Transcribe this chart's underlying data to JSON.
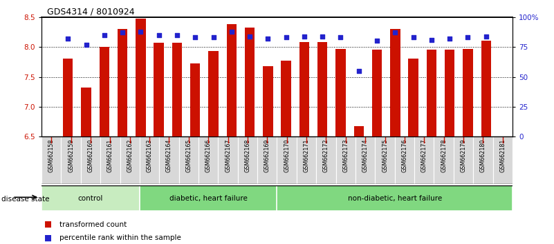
{
  "title": "GDS4314 / 8010924",
  "samples": [
    "GSM662158",
    "GSM662159",
    "GSM662160",
    "GSM662161",
    "GSM662162",
    "GSM662163",
    "GSM662164",
    "GSM662165",
    "GSM662166",
    "GSM662167",
    "GSM662168",
    "GSM662169",
    "GSM662170",
    "GSM662171",
    "GSM662172",
    "GSM662173",
    "GSM662174",
    "GSM662175",
    "GSM662176",
    "GSM662177",
    "GSM662178",
    "GSM662179",
    "GSM662180",
    "GSM662181"
  ],
  "bar_values": [
    7.8,
    7.32,
    8.0,
    8.3,
    8.48,
    8.07,
    8.07,
    7.73,
    7.93,
    8.38,
    8.32,
    7.68,
    7.77,
    8.08,
    8.08,
    7.97,
    6.68,
    7.95,
    8.3,
    7.8,
    7.95,
    7.95,
    7.97,
    8.11
  ],
  "percentile_values": [
    82,
    77,
    85,
    87,
    88,
    85,
    85,
    83,
    83,
    88,
    84,
    82,
    83,
    84,
    84,
    83,
    55,
    80,
    87,
    83,
    81,
    82,
    83,
    84
  ],
  "group_data": [
    {
      "label": "control",
      "start": 0,
      "end": 5,
      "color": "#c8ecc0"
    },
    {
      "label": "diabetic, heart failure",
      "start": 5,
      "end": 12,
      "color": "#80d880"
    },
    {
      "label": "non-diabetic, heart failure",
      "start": 12,
      "end": 24,
      "color": "#80d880"
    }
  ],
  "bar_color": "#cc1100",
  "dot_color": "#2222cc",
  "ylim_left": [
    6.5,
    8.5
  ],
  "ylim_right": [
    0,
    100
  ],
  "yticks_left": [
    6.5,
    7.0,
    7.5,
    8.0,
    8.5
  ],
  "yticks_right": [
    0,
    25,
    50,
    75,
    100
  ],
  "ytick_labels_right": [
    "0",
    "25",
    "50",
    "75",
    "100%"
  ],
  "grid_values": [
    7.0,
    7.5,
    8.0
  ],
  "legend_items": [
    {
      "label": "transformed count",
      "color": "#cc1100"
    },
    {
      "label": "percentile rank within the sample",
      "color": "#2222cc"
    }
  ]
}
